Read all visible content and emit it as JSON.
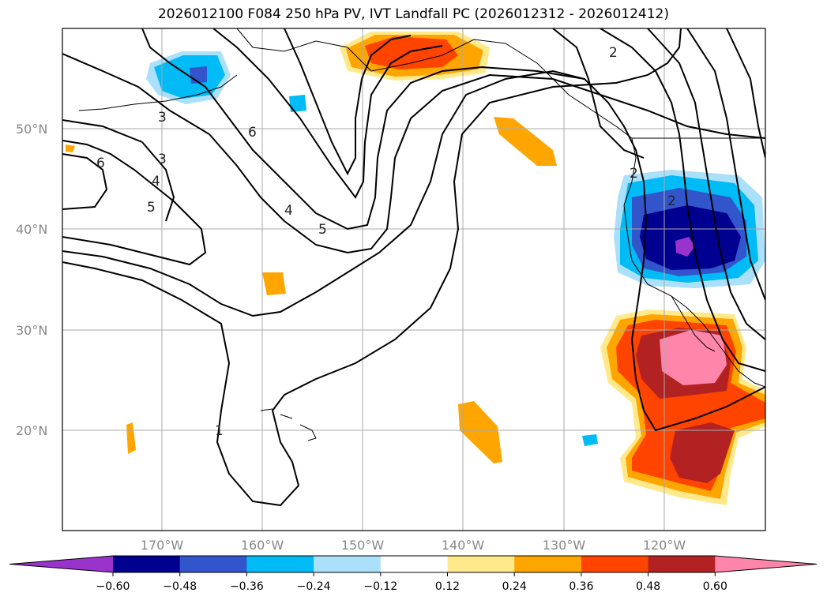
{
  "title": "2026012100 F084 250 hPa PV, IVT Landfall PC (2026012312 - 2026012412)",
  "lat_labels": [
    "50°N",
    "40°N",
    "30°N",
    "20°N"
  ],
  "lon_labels": [
    "170°W",
    "160°W",
    "150°W",
    "140°W",
    "130°W",
    "120°W"
  ],
  "contour_labels": [
    "3",
    "6",
    "6",
    "3",
    "4",
    "5",
    "4",
    "5",
    "1",
    "2",
    "2",
    "2"
  ],
  "colorbar": {
    "ticks": [
      "−0.60",
      "−0.48",
      "−0.36",
      "−0.24",
      "−0.12",
      "0.12",
      "0.24",
      "0.36",
      "0.48",
      "0.60"
    ],
    "colors": [
      "#9933cc",
      "#000090",
      "#3355cc",
      "#00bbf5",
      "#aae0fa",
      "#ffffff",
      "#ffe98a",
      "#ffa500",
      "#ff4400",
      "#b22222",
      "#ff85aa"
    ]
  },
  "fill_colors": {
    "neg_light": "#aae0fa",
    "neg_mid": "#00bbf5",
    "neg_dark": "#3355cc",
    "neg_darker": "#000090",
    "neg_min": "#9933cc",
    "pos_light": "#ffe98a",
    "pos_mid": "#ffa500",
    "pos_high": "#ff4400",
    "pos_higher": "#b22222",
    "pos_max": "#ff85aa"
  }
}
